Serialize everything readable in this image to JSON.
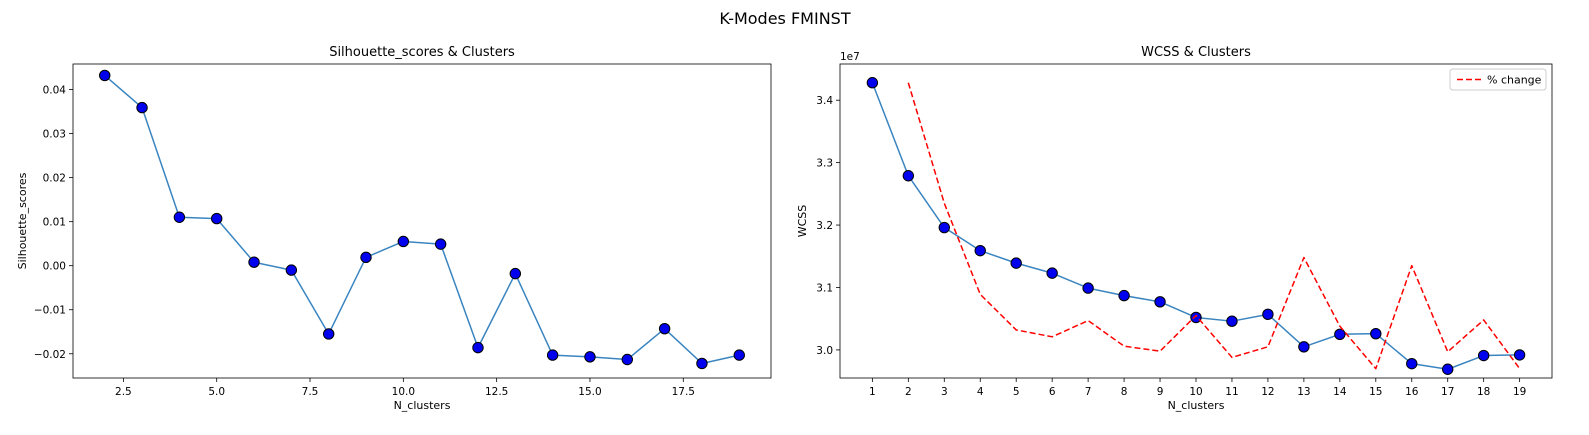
{
  "figure": {
    "suptitle": "K-Modes FMINST"
  },
  "chart_data": [
    {
      "type": "line",
      "title": "Silhouette_scores & Clusters",
      "xlabel": "N_clusters",
      "ylabel": "Silhouette_scores",
      "xlim": [
        1.15,
        19.85
      ],
      "ylim": [
        -0.0255,
        0.0458
      ],
      "xticks": [
        2.5,
        5.0,
        7.5,
        10.0,
        12.5,
        15.0,
        17.5
      ],
      "xtick_labels": [
        "2.5",
        "5.0",
        "7.5",
        "10.0",
        "12.5",
        "15.0",
        "17.5"
      ],
      "yticks": [
        0.04,
        0.03,
        0.02,
        0.01,
        0.0,
        -0.01,
        -0.02
      ],
      "ytick_labels": [
        "0.04",
        "0.03",
        "0.02",
        "0.01",
        "0.00",
        "−0.01",
        "−0.02"
      ],
      "grid": false,
      "series": [
        {
          "line_color": "#3a85c0",
          "marker_color": "#0000ee",
          "x": [
            2,
            3,
            4,
            5,
            6,
            7,
            8,
            9,
            10,
            11,
            12,
            13,
            14,
            15,
            16,
            17,
            18,
            19
          ],
          "y": [
            0.0432,
            0.0359,
            0.011,
            0.0107,
            0.0008,
            -0.001,
            -0.0155,
            0.0019,
            0.0055,
            0.0049,
            -0.0186,
            -0.0018,
            -0.0203,
            -0.0207,
            -0.0213,
            -0.0143,
            -0.0222,
            -0.0203
          ]
        }
      ]
    },
    {
      "type": "line",
      "title": "WCSS & Clusters",
      "xlabel": "N_clusters",
      "ylabel": "WCSS",
      "y_offset_label": "1e7",
      "xlim": [
        0.1,
        19.9
      ],
      "ylim": [
        2.955,
        3.458
      ],
      "xticks": [
        1,
        2,
        3,
        4,
        5,
        6,
        7,
        8,
        9,
        10,
        11,
        12,
        13,
        14,
        15,
        16,
        17,
        18,
        19
      ],
      "xtick_labels": [
        "1",
        "2",
        "3",
        "4",
        "5",
        "6",
        "7",
        "8",
        "9",
        "10",
        "11",
        "12",
        "13",
        "14",
        "15",
        "16",
        "17",
        "18",
        "19"
      ],
      "yticks": [
        3.4,
        3.3,
        3.2,
        3.1,
        3.0
      ],
      "ytick_labels": [
        "3.4",
        "3.3",
        "3.2",
        "3.1",
        "3.0"
      ],
      "grid": false,
      "legend_position": "top-right",
      "series": [
        {
          "line_color": "#3a85c0",
          "marker_color": "#0000ee",
          "x": [
            1,
            2,
            3,
            4,
            5,
            6,
            7,
            8,
            9,
            10,
            11,
            12,
            13,
            14,
            15,
            16,
            17,
            18,
            19
          ],
          "y": [
            3.428,
            3.279,
            3.196,
            3.159,
            3.139,
            3.123,
            3.099,
            3.087,
            3.077,
            3.052,
            3.046,
            3.057,
            3.005,
            3.025,
            3.026,
            2.978,
            2.969,
            2.991,
            2.992
          ]
        },
        {
          "name": "% change",
          "line_color": "#ff0000",
          "dashed": true,
          "x": [
            2,
            3,
            4,
            5,
            6,
            7,
            8,
            9,
            10,
            11,
            12,
            13,
            14,
            15,
            16,
            17,
            18,
            19
          ],
          "y": [
            3.428,
            3.235,
            3.089,
            3.032,
            3.021,
            3.047,
            3.006,
            2.998,
            3.055,
            2.988,
            3.005,
            3.148,
            3.038,
            2.97,
            3.135,
            2.997,
            3.048,
            2.97
          ]
        }
      ]
    }
  ]
}
